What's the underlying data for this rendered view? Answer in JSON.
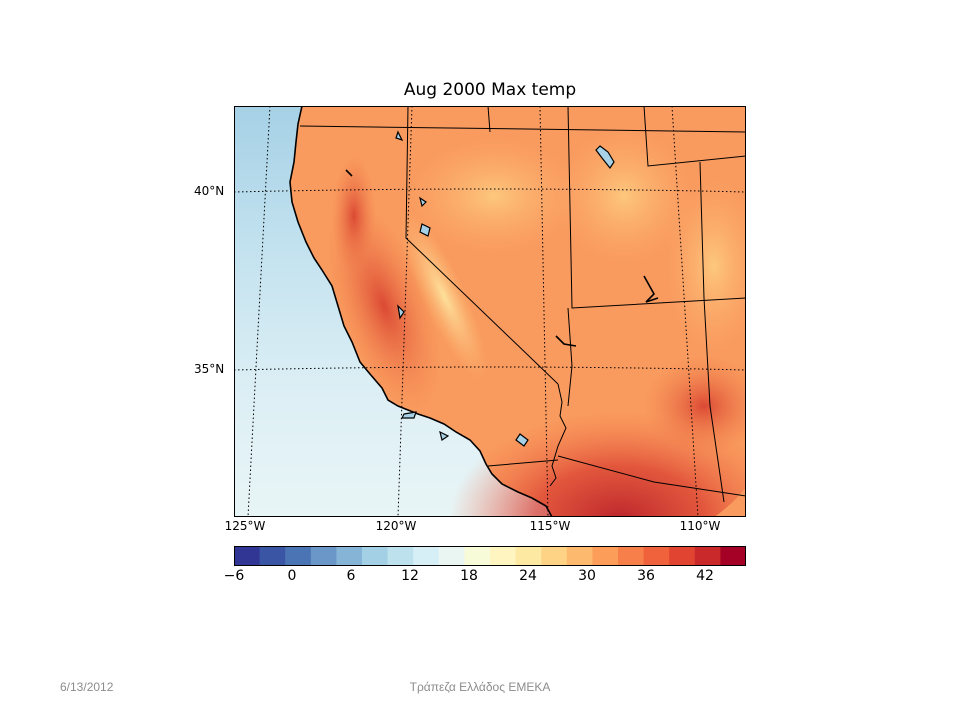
{
  "slide": {
    "footer_date": "6/13/2012",
    "footer_center": "Τράπεζα Ελλάδος ΕΜΕΚΑ"
  },
  "map": {
    "title": "Aug 2000 Max temp",
    "lat_labels": [
      "40°N",
      "35°N"
    ],
    "lon_labels": [
      "125°W",
      "120°W",
      "115°W",
      "110°W"
    ],
    "colorbar": {
      "tick_labels": [
        "−6",
        "0",
        "6",
        "12",
        "18",
        "24",
        "30",
        "36",
        "42"
      ],
      "colors": [
        "#313695",
        "#3a55a3",
        "#4a74b4",
        "#6a97c7",
        "#86b4d6",
        "#a3d0e4",
        "#bde2ee",
        "#d6eef5",
        "#eaf6f2",
        "#f8fbd8",
        "#fff5c0",
        "#fee9a2",
        "#fed385",
        "#fdba6f",
        "#fc9e5a",
        "#f7804a",
        "#ef623b",
        "#e14531",
        "#c9292a",
        "#a50026"
      ],
      "land_palette": [
        "#fdd090",
        "#fcb070",
        "#f99058",
        "#f26c44",
        "#e14a33",
        "#c62a2c"
      ],
      "ocean_palette": [
        "#a6d1e6",
        "#c5e3ef",
        "#ddeff5",
        "#e8f5f6"
      ]
    }
  }
}
